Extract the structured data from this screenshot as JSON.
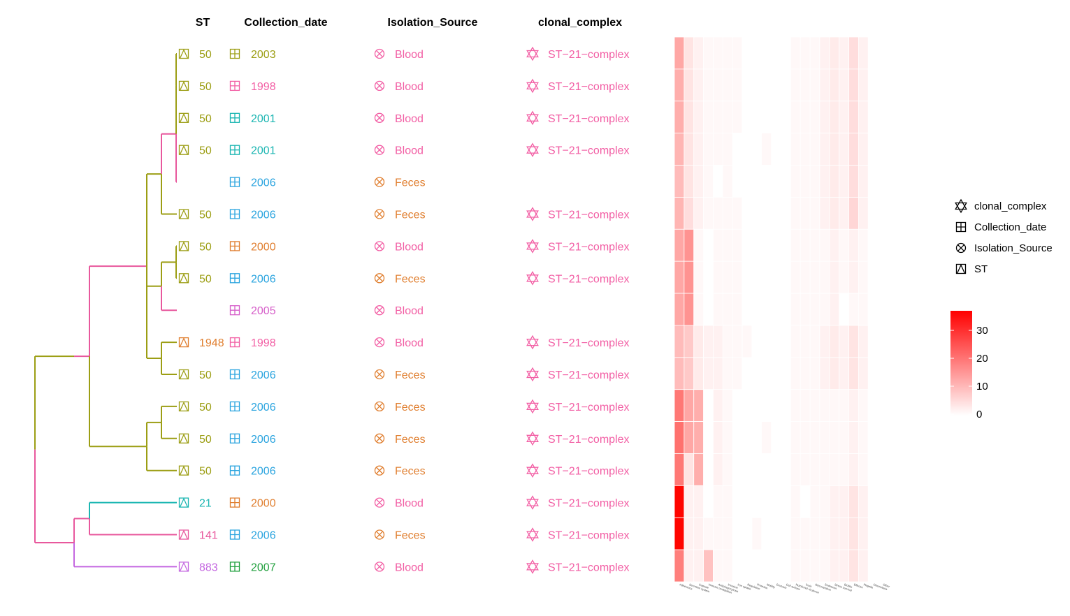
{
  "headers": {
    "st": "ST",
    "date": "Collection_date",
    "source": "Isolation_Source",
    "complex": "clonal_complex"
  },
  "legend": {
    "items": [
      {
        "icon": "star-of-david-icon",
        "label": "clonal_complex"
      },
      {
        "icon": "boxed-plus-icon",
        "label": "Collection_date"
      },
      {
        "icon": "circled-x-icon",
        "label": "Isolation_Source"
      },
      {
        "icon": "boxed-triangle-icon",
        "label": "ST"
      }
    ],
    "colorbar": {
      "ticks": [
        "30",
        "20",
        "10",
        "0"
      ],
      "range": [
        0,
        37
      ],
      "low_color": "#ffffff",
      "high_color": "#ff0000"
    }
  },
  "colors": {
    "olive": "#9c9e14",
    "pink": "#e8589d",
    "teal": "#1cb6b2",
    "violet": "#c467e0",
    "orange": "#e07f30",
    "blue": "#2aa4df",
    "green": "#21a03e",
    "hotpink": "#f25ea4",
    "rose": "#f05a8a",
    "magenta": "#d65fc9"
  },
  "chart_data": {
    "type": "heatmap",
    "title": "",
    "rows": [
      {
        "st": "50",
        "st_color": "olive",
        "date": "2003",
        "date_color": "olive",
        "source": "Blood",
        "source_color": "hotpink",
        "complex": "ST−21−complex"
      },
      {
        "st": "50",
        "st_color": "olive",
        "date": "1998",
        "date_color": "hotpink",
        "source": "Blood",
        "source_color": "hotpink",
        "complex": "ST−21−complex"
      },
      {
        "st": "50",
        "st_color": "olive",
        "date": "2001",
        "date_color": "teal",
        "source": "Blood",
        "source_color": "hotpink",
        "complex": "ST−21−complex"
      },
      {
        "st": "50",
        "st_color": "olive",
        "date": "2001",
        "date_color": "teal",
        "source": "Blood",
        "source_color": "hotpink",
        "complex": "ST−21−complex"
      },
      {
        "st": "",
        "st_color": "olive",
        "date": "2006",
        "date_color": "blue",
        "source": "Feces",
        "source_color": "orange",
        "complex": ""
      },
      {
        "st": "50",
        "st_color": "olive",
        "date": "2006",
        "date_color": "blue",
        "source": "Feces",
        "source_color": "orange",
        "complex": "ST−21−complex"
      },
      {
        "st": "50",
        "st_color": "olive",
        "date": "2000",
        "date_color": "orange",
        "source": "Blood",
        "source_color": "hotpink",
        "complex": "ST−21−complex"
      },
      {
        "st": "50",
        "st_color": "olive",
        "date": "2006",
        "date_color": "blue",
        "source": "Feces",
        "source_color": "orange",
        "complex": "ST−21−complex"
      },
      {
        "st": "",
        "st_color": "olive",
        "date": "2005",
        "date_color": "magenta",
        "source": "Blood",
        "source_color": "hotpink",
        "complex": ""
      },
      {
        "st": "1948",
        "st_color": "orange",
        "date": "1998",
        "date_color": "hotpink",
        "source": "Blood",
        "source_color": "hotpink",
        "complex": "ST−21−complex"
      },
      {
        "st": "50",
        "st_color": "olive",
        "date": "2006",
        "date_color": "blue",
        "source": "Feces",
        "source_color": "orange",
        "complex": "ST−21−complex"
      },
      {
        "st": "50",
        "st_color": "olive",
        "date": "2006",
        "date_color": "blue",
        "source": "Feces",
        "source_color": "orange",
        "complex": "ST−21−complex"
      },
      {
        "st": "50",
        "st_color": "olive",
        "date": "2006",
        "date_color": "blue",
        "source": "Feces",
        "source_color": "orange",
        "complex": "ST−21−complex"
      },
      {
        "st": "50",
        "st_color": "olive",
        "date": "2006",
        "date_color": "blue",
        "source": "Feces",
        "source_color": "orange",
        "complex": "ST−21−complex"
      },
      {
        "st": "21",
        "st_color": "teal",
        "date": "2000",
        "date_color": "orange",
        "source": "Blood",
        "source_color": "hotpink",
        "complex": "ST−21−complex"
      },
      {
        "st": "141",
        "st_color": "pink",
        "date": "2006",
        "date_color": "blue",
        "source": "Feces",
        "source_color": "orange",
        "complex": "ST−21−complex"
      },
      {
        "st": "883",
        "st_color": "violet",
        "date": "2007",
        "date_color": "green",
        "source": "Blood",
        "source_color": "hotpink",
        "complex": "ST−21−complex"
      }
    ],
    "tree": {
      "name": "root",
      "color": "olive",
      "children": [
        {
          "color": "olive",
          "children": [
            {
              "color": "pink",
              "children": [
                {
                  "color": "pink",
                  "children": [
                    {
                      "color": "olive",
                      "children": [
                        {
                          "color": "pink",
                          "children": [
                            {
                              "color": "olive",
                              "children": [
                                {
                                  "color": "olive",
                                  "leaf": 0
                                },
                                {
                                  "color": "olive",
                                  "leaf": 1
                                },
                                {
                                  "color": "olive",
                                  "leaf": 2
                                }
                              ]
                            },
                            {
                              "color": "olive",
                              "leaf": 3
                            },
                            {
                              "color": "pink",
                              "leaf": 4
                            }
                          ]
                        },
                        {
                          "color": "olive",
                          "leaf": 5
                        }
                      ]
                    },
                    {
                      "color": "olive",
                      "children": [
                        {
                          "color": "olive",
                          "children": [
                            {
                              "color": "olive",
                              "leaf": 6
                            },
                            {
                              "color": "olive",
                              "leaf": 7
                            }
                          ]
                        },
                        {
                          "color": "pink",
                          "leaf": 8
                        }
                      ]
                    },
                    {
                      "color": "olive",
                      "children": [
                        {
                          "color": "olive",
                          "leaf": 9
                        },
                        {
                          "color": "olive",
                          "leaf": 10
                        }
                      ]
                    }
                  ]
                },
                {
                  "color": "olive",
                  "children": [
                    {
                      "color": "olive",
                      "children": [
                        {
                          "color": "olive",
                          "leaf": 11
                        },
                        {
                          "color": "olive",
                          "leaf": 12
                        }
                      ]
                    },
                    {
                      "color": "olive",
                      "leaf": 13
                    }
                  ]
                }
              ]
            }
          ]
        },
        {
          "color": "pink",
          "children": [
            {
              "color": "pink",
              "children": [
                {
                  "color": "teal",
                  "leaf": 14
                },
                {
                  "color": "pink",
                  "leaf": 15
                }
              ]
            },
            {
              "color": "violet",
              "leaf": 16
            }
          ]
        }
      ]
    },
    "heatmap": {
      "columns": [
        "Adherence",
        "Secretion system",
        "Capsule",
        "Immune modulation",
        "Antiphagocytosis",
        "Invasion",
        "Iron uptake",
        "Regulation",
        "Protease",
        "Motility",
        "Exotoxin",
        "Cell surface",
        "Nutritional virulence",
        "Toxin",
        "Glycosylation",
        "Endotoxin",
        "Stress survival",
        "Biofilm",
        "Effector",
        "Flagella",
        "Chemotaxis",
        "Other"
      ],
      "values": [
        [
          13,
          4,
          2,
          1,
          1,
          1,
          1,
          0,
          0,
          0,
          0,
          0,
          1,
          1,
          1,
          2,
          3,
          2,
          5,
          2,
          0,
          0
        ],
        [
          12,
          4,
          2,
          1,
          1,
          1,
          1,
          0,
          0,
          0,
          0,
          0,
          1,
          1,
          1,
          2,
          3,
          2,
          5,
          2,
          0,
          0
        ],
        [
          12,
          4,
          2,
          1,
          1,
          1,
          1,
          0,
          0,
          0,
          0,
          0,
          1,
          1,
          1,
          2,
          3,
          2,
          5,
          2,
          0,
          0
        ],
        [
          11,
          4,
          2,
          1,
          1,
          1,
          0,
          0,
          0,
          1,
          0,
          0,
          1,
          1,
          1,
          2,
          3,
          2,
          5,
          2,
          0,
          0
        ],
        [
          10,
          4,
          2,
          1,
          0,
          1,
          0,
          0,
          0,
          0,
          0,
          0,
          1,
          1,
          1,
          2,
          3,
          2,
          5,
          2,
          0,
          0
        ],
        [
          11,
          5,
          2,
          1,
          1,
          1,
          1,
          0,
          0,
          0,
          0,
          0,
          1,
          1,
          1,
          2,
          3,
          2,
          6,
          2,
          0,
          0
        ],
        [
          13,
          16,
          1,
          0,
          1,
          1,
          1,
          0,
          0,
          0,
          0,
          0,
          1,
          1,
          1,
          1,
          2,
          1,
          2,
          1,
          0,
          0
        ],
        [
          13,
          16,
          1,
          0,
          1,
          1,
          1,
          0,
          0,
          0,
          0,
          0,
          1,
          1,
          1,
          1,
          2,
          1,
          2,
          1,
          0,
          0
        ],
        [
          13,
          16,
          1,
          0,
          1,
          1,
          1,
          0,
          0,
          0,
          0,
          0,
          1,
          1,
          1,
          1,
          2,
          0,
          1,
          1,
          0,
          0
        ],
        [
          10,
          8,
          3,
          2,
          2,
          1,
          1,
          1,
          0,
          0,
          0,
          0,
          1,
          1,
          1,
          2,
          3,
          2,
          4,
          2,
          0,
          0
        ],
        [
          10,
          8,
          3,
          2,
          2,
          1,
          1,
          0,
          0,
          0,
          0,
          0,
          1,
          1,
          1,
          2,
          3,
          2,
          4,
          2,
          0,
          0
        ],
        [
          20,
          13,
          12,
          0,
          2,
          1,
          0,
          0,
          0,
          0,
          0,
          0,
          1,
          1,
          1,
          1,
          1,
          1,
          2,
          1,
          0,
          0
        ],
        [
          21,
          13,
          12,
          0,
          2,
          1,
          0,
          0,
          0,
          1,
          0,
          0,
          1,
          1,
          1,
          1,
          1,
          1,
          2,
          1,
          0,
          0
        ],
        [
          20,
          4,
          12,
          0,
          2,
          1,
          0,
          0,
          0,
          0,
          0,
          0,
          1,
          1,
          1,
          1,
          1,
          1,
          2,
          1,
          0,
          0
        ],
        [
          37,
          2,
          2,
          0,
          1,
          1,
          0,
          0,
          0,
          0,
          0,
          0,
          1,
          0,
          1,
          1,
          2,
          2,
          4,
          2,
          0,
          0
        ],
        [
          37,
          2,
          2,
          1,
          1,
          1,
          0,
          0,
          1,
          0,
          0,
          0,
          1,
          1,
          1,
          1,
          2,
          2,
          4,
          2,
          0,
          0
        ],
        [
          19,
          2,
          2,
          9,
          1,
          1,
          0,
          0,
          0,
          0,
          0,
          0,
          1,
          1,
          1,
          1,
          2,
          2,
          4,
          2,
          0,
          0
        ]
      ]
    }
  }
}
